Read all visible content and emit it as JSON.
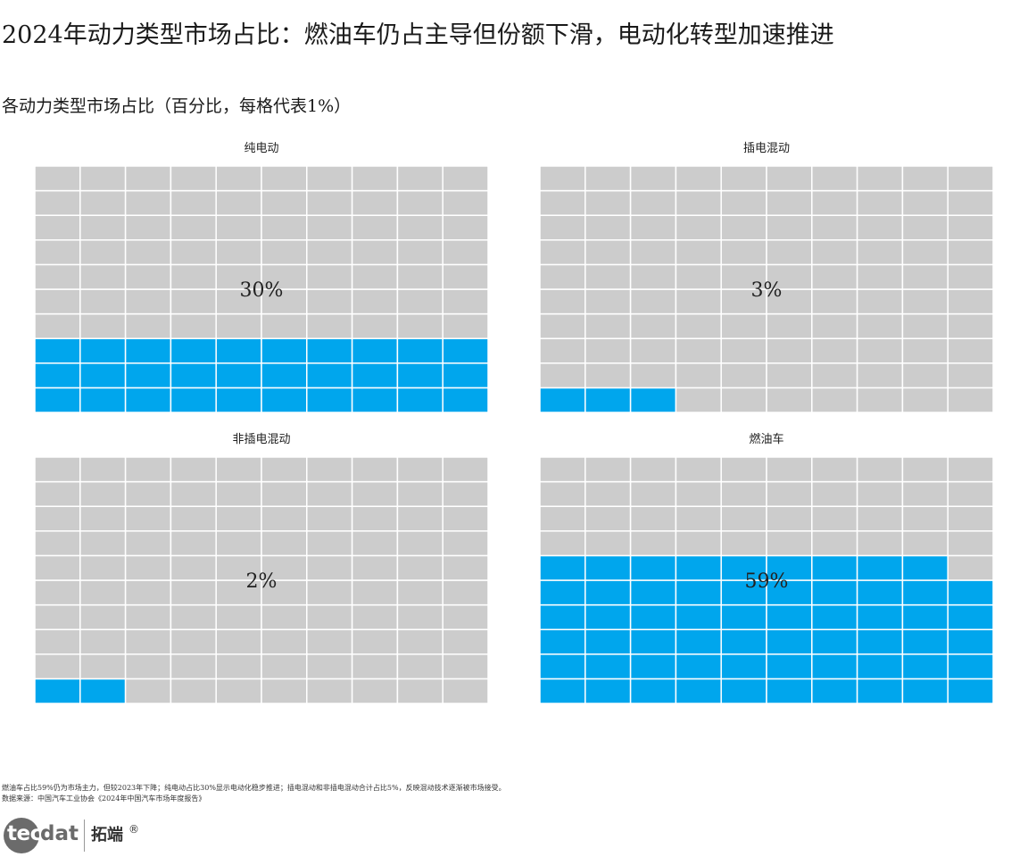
{
  "title": "2024年动力类型市场占比：燃油车仍占主导但份额下滑，电动化转型加速推进",
  "subtitle": "各动力类型市场占比（百分比，每格代表1%）",
  "colors": {
    "filled": "#00a6ed",
    "empty": "#cccccc",
    "cell_border": "#ffffff"
  },
  "chart_data": {
    "type": "waffle",
    "title": "各动力类型市场占比（百分比，每格代表1%）",
    "grid": {
      "rows": 10,
      "cols": 10
    },
    "series": [
      {
        "name": "纯电动",
        "value": 30,
        "label": "30%"
      },
      {
        "name": "插电混动",
        "value": 3,
        "label": "3%"
      },
      {
        "name": "非插电混动",
        "value": 2,
        "label": "2%"
      },
      {
        "name": "燃油车",
        "value": 59,
        "label": "59%"
      }
    ]
  },
  "footer": {
    "note": "燃油车占比59%仍为市场主力，但较2023年下降；纯电动占比30%显示电动化稳步推进；插电混动和非插电混动合计占比5%，反映混动技术逐渐被市场接受。",
    "source": "数据来源：中国汽车工业协会《2024年中国汽车市场年度报告》"
  },
  "logo": {
    "tec": "tec",
    "dat": "dat",
    "cn": "拓端",
    "reg": "®"
  }
}
